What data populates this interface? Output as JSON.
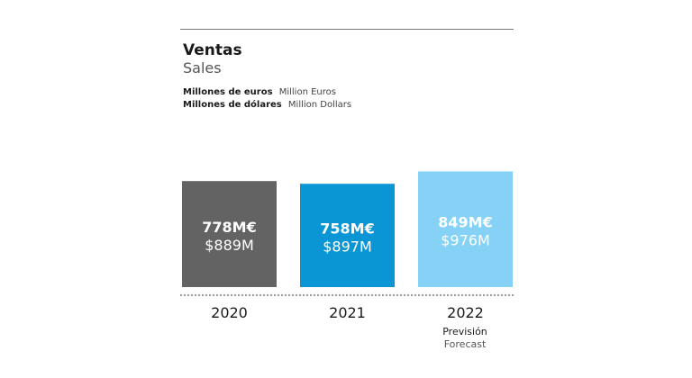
{
  "title": "Ventas",
  "subtitle": "Sales",
  "units": [
    {
      "es": "Millones de euros",
      "en": "Million Euros"
    },
    {
      "es": "Millones de dólares",
      "en": "Million Dollars"
    }
  ],
  "forecast_label": {
    "es": "Previsión",
    "en": "Forecast"
  },
  "chart_data": {
    "type": "bar",
    "title": "Ventas",
    "subtitle": "Sales",
    "categories": [
      "2020",
      "2021",
      "2022"
    ],
    "series": [
      {
        "name": "Millones de euros",
        "values": [
          778,
          758,
          849
        ],
        "labels": [
          "778M€",
          "758M€",
          "849M€"
        ]
      },
      {
        "name": "Million Dollars",
        "values": [
          889,
          897,
          976
        ],
        "labels": [
          "$889M",
          "$897M",
          "$976M"
        ]
      }
    ],
    "bar_colors": [
      "#636363",
      "#0a96d5",
      "#86d2f7"
    ],
    "forecast_categories": [
      "2022"
    ],
    "grid": false
  }
}
